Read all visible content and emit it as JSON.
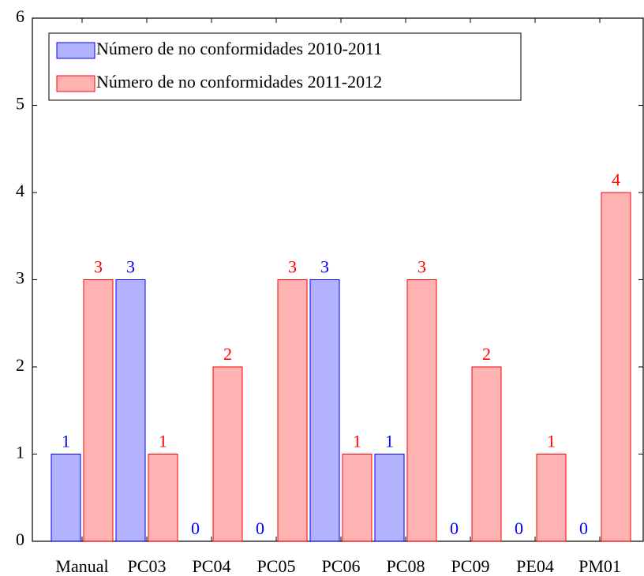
{
  "chart_data": {
    "type": "bar",
    "categories": [
      "Manual",
      "PC03",
      "PC04",
      "PC05",
      "PC06",
      "PC08",
      "PC09",
      "PE04",
      "PM01"
    ],
    "series": [
      {
        "name": "Número de no conformidades 2010-2011",
        "color": "#0000ff",
        "values": [
          1,
          3,
          0,
          0,
          3,
          1,
          0,
          0,
          0
        ]
      },
      {
        "name": "Número de no conformidades 2011-2012",
        "color": "#ff0000",
        "values": [
          3,
          1,
          2,
          3,
          1,
          3,
          2,
          1,
          4
        ]
      }
    ],
    "ylim": [
      0,
      6
    ],
    "yticks": [
      0,
      1,
      2,
      3,
      4,
      5,
      6
    ],
    "legend": "upper left"
  }
}
